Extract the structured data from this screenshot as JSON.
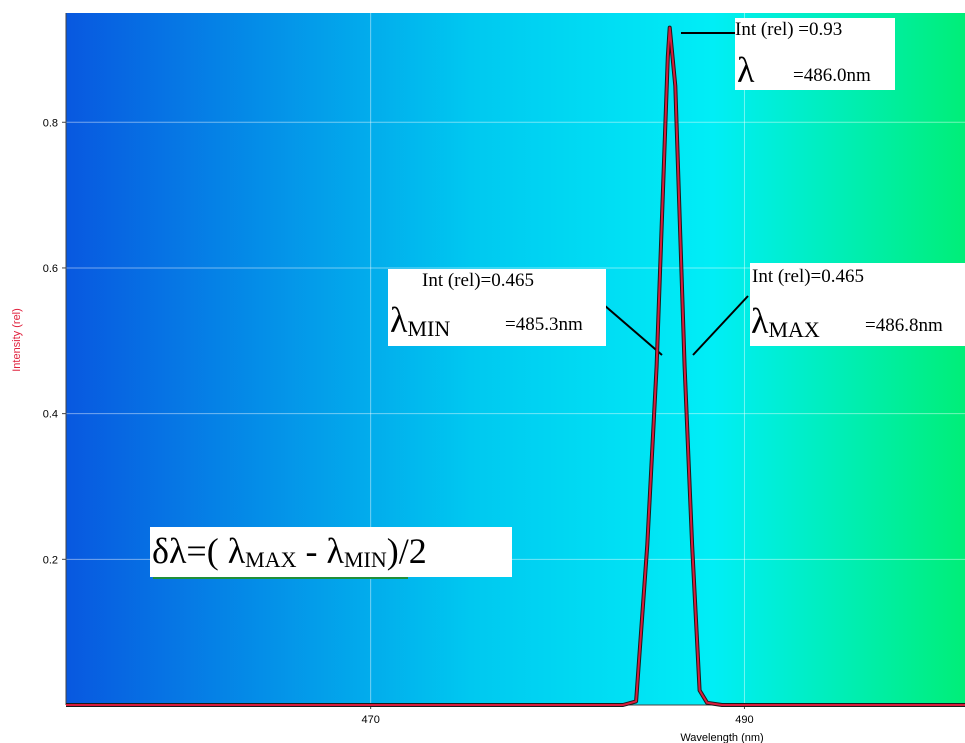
{
  "chart_data": {
    "type": "line",
    "xlabel": "Wavelength (nm)",
    "ylabel": "Intensity (rel)",
    "xlim": [
      453.7,
      501.8
    ],
    "ylim": [
      0,
      0.95
    ],
    "xticks": [
      470,
      490
    ],
    "yticks": [
      0.2,
      0.4,
      0.6,
      0.8
    ],
    "grid": true,
    "background_gradient": [
      "#0858e0",
      "#00c8f0",
      "#00eef6",
      "#00ee78"
    ],
    "series": [
      {
        "color": "#d81c3c",
        "x": [
          453.7,
          470,
          480,
          483.5,
          484.2,
          484.8,
          485.3,
          485.9,
          486.0,
          486.3,
          486.8,
          487.2,
          487.6,
          488.0,
          488.8,
          490,
          501.8
        ],
        "y": [
          0.0,
          0.0,
          0.0,
          0.0,
          0.005,
          0.22,
          0.465,
          0.89,
          0.93,
          0.85,
          0.465,
          0.22,
          0.02,
          0.003,
          0.0,
          0.0,
          0.0
        ]
      }
    ],
    "annotations": {
      "peak": {
        "int_label": "Int (rel) =0.93",
        "lambda": "λ",
        "lambda_sub": "",
        "value": "=486.0nm"
      },
      "min": {
        "int_label": "Int (rel)=0.465",
        "lambda": "λ",
        "lambda_sub": "MIN",
        "value": "=485.3nm"
      },
      "max": {
        "int_label": "Int (rel)=0.465",
        "lambda": "λ",
        "lambda_sub": "MAX",
        "value": "=486.8nm"
      },
      "formula": {
        "prefix": "δλ=( λ",
        "sub1": "MAX",
        "mid": " - λ",
        "sub2": "MIN",
        "suffix": ")/2"
      }
    }
  }
}
